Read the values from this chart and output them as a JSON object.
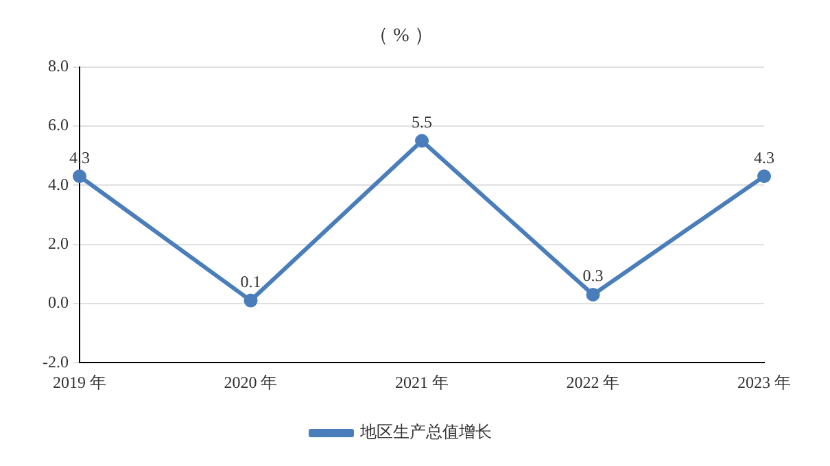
{
  "chart_data": {
    "type": "line",
    "title": "（ % ）",
    "categories": [
      "2019 年",
      "2020 年",
      "2021 年",
      "2022 年",
      "2023 年"
    ],
    "series": [
      {
        "name": "地区生产总值增长",
        "color": "#4a7ebb",
        "values": [
          4.3,
          0.1,
          5.5,
          0.3,
          4.3
        ]
      }
    ],
    "ylim": [
      -2,
      8
    ],
    "yticks": [
      {
        "value": -2,
        "label": "-2.0"
      },
      {
        "value": 0,
        "label": "0.0"
      },
      {
        "value": 2,
        "label": "2.0"
      },
      {
        "value": 4,
        "label": "4.0"
      },
      {
        "value": 6,
        "label": "6.0"
      },
      {
        "value": 8,
        "label": "8.0"
      }
    ],
    "grid": "y",
    "legend": "bottom",
    "marker": "circle",
    "line_style": "solid",
    "data_labels": true
  }
}
